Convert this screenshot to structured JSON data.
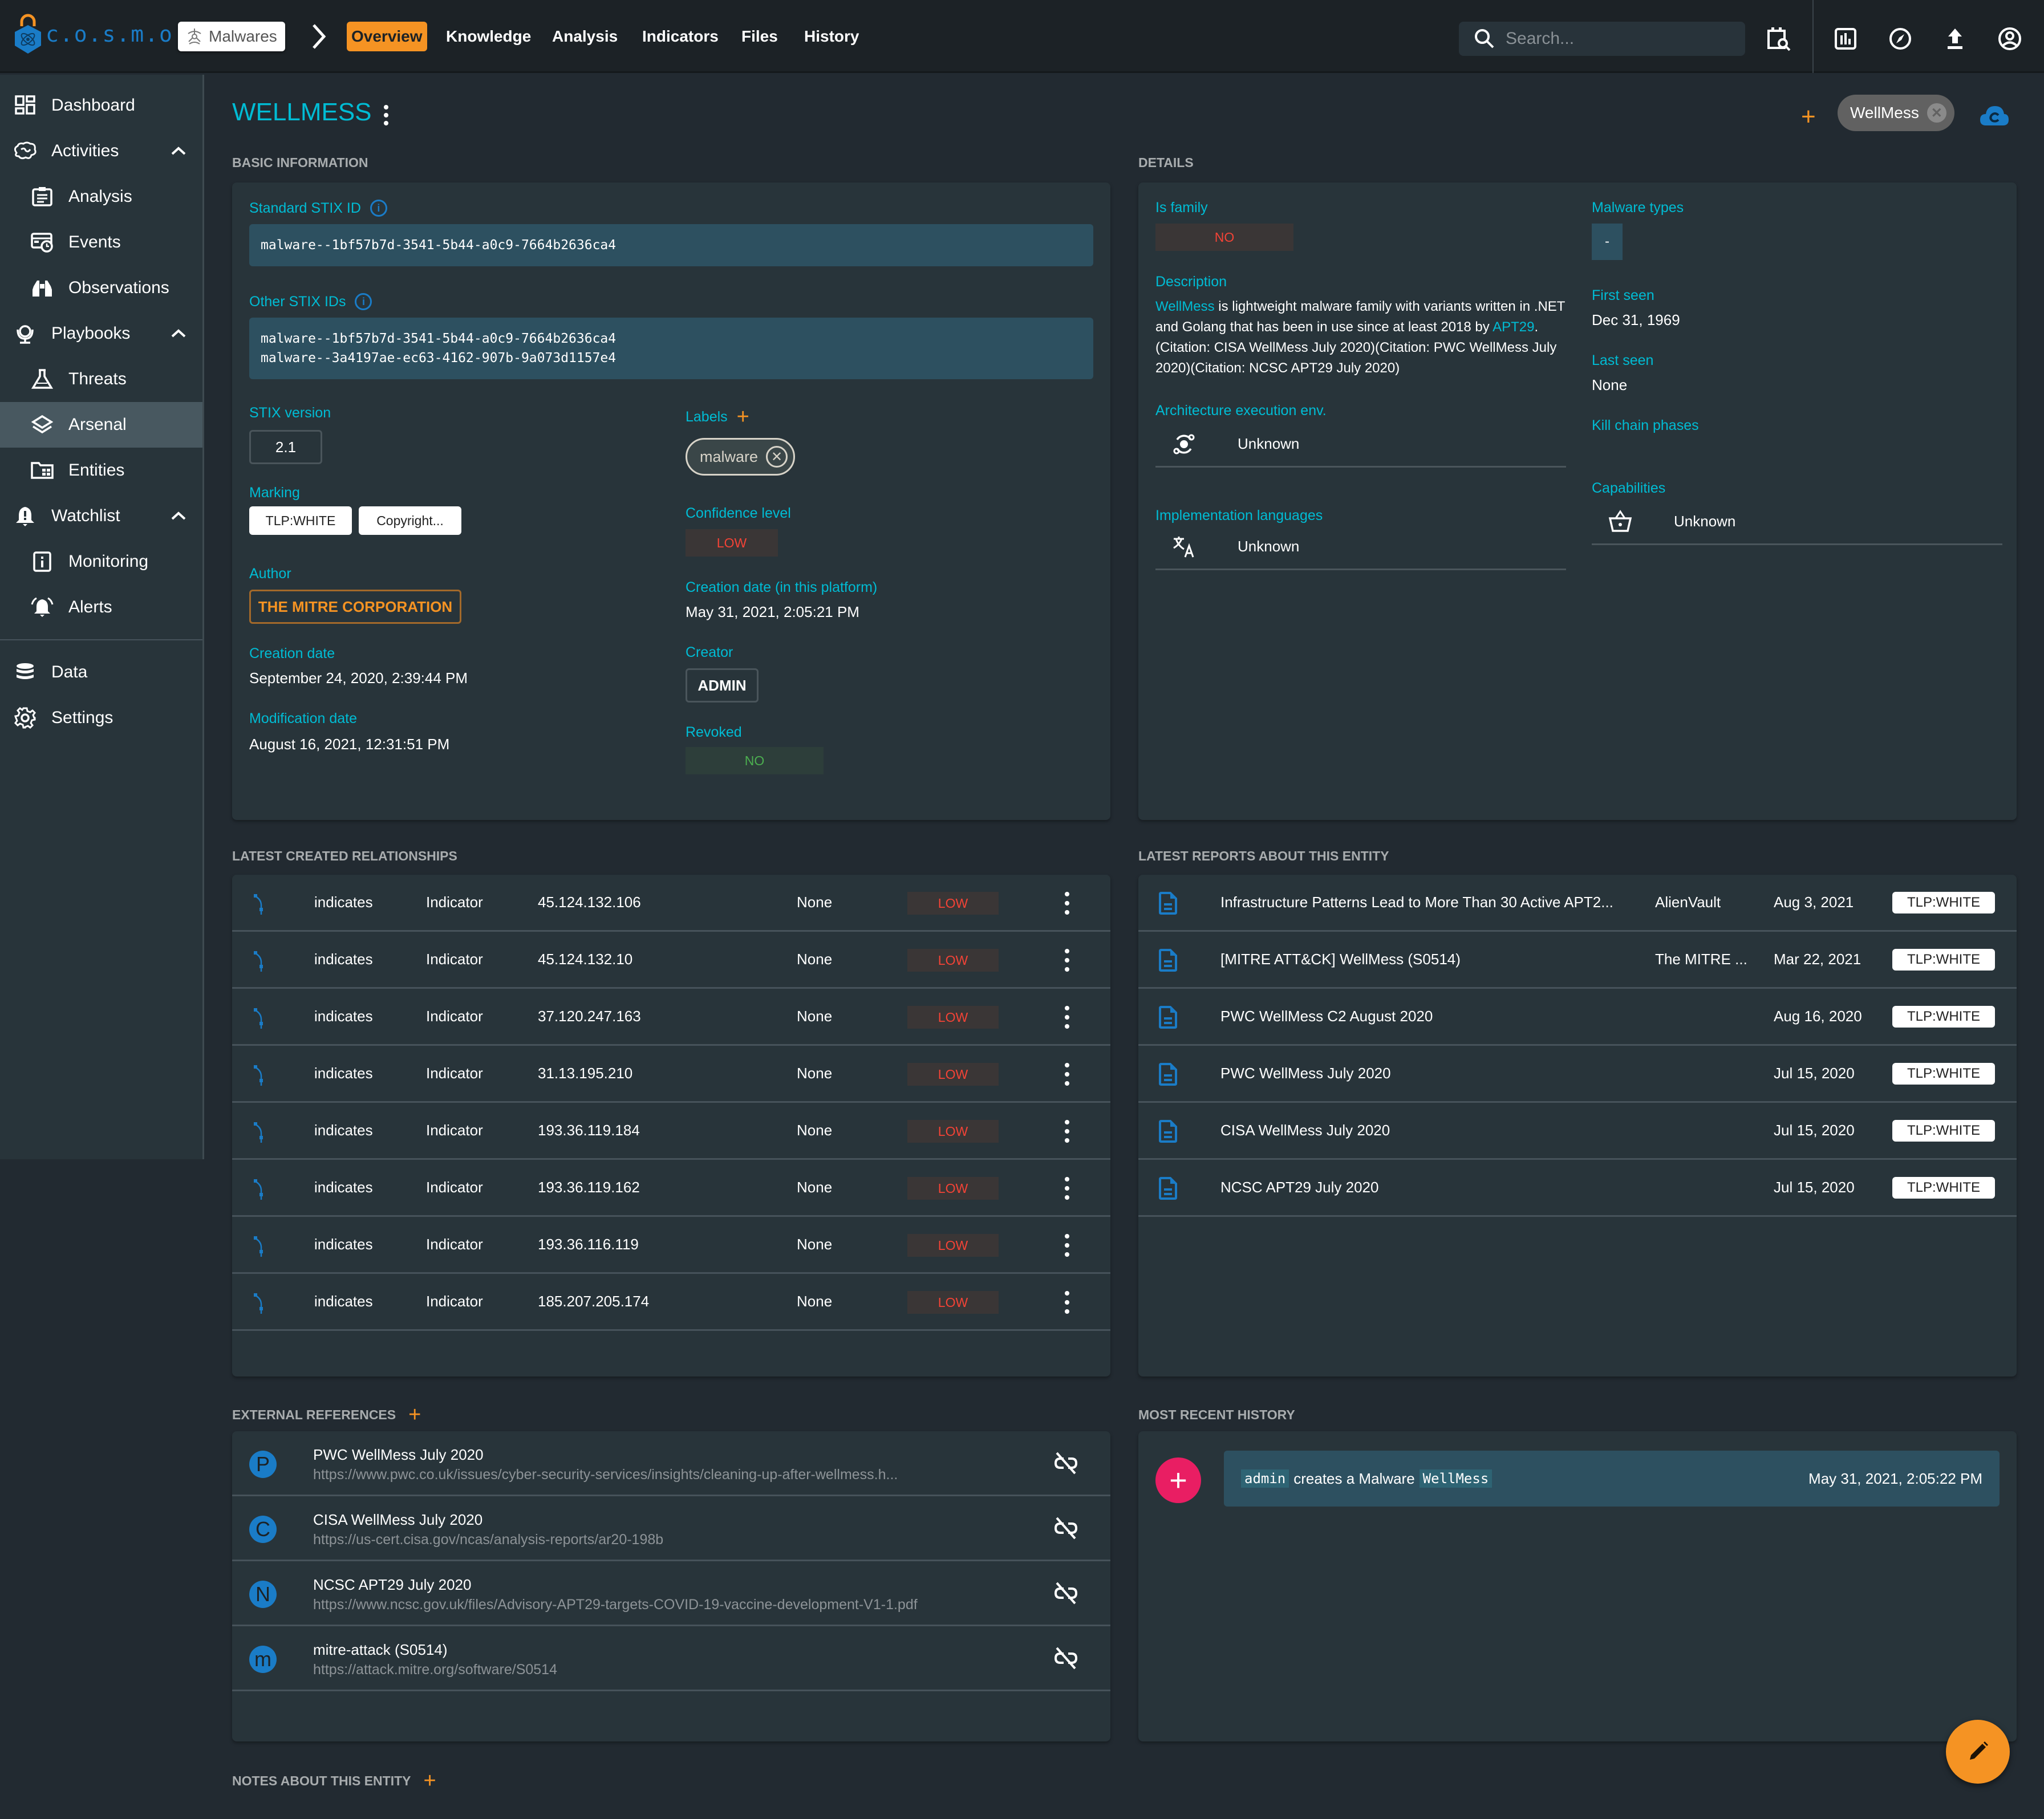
{
  "app": {
    "logo_text": "c.o.s.m.o"
  },
  "topbar": {
    "breadcrumb_root": "Malwares",
    "tabs": [
      {
        "label": "Overview",
        "active": true
      },
      {
        "label": "Knowledge",
        "active": false
      },
      {
        "label": "Analysis",
        "active": false
      },
      {
        "label": "Indicators",
        "active": false
      },
      {
        "label": "Files",
        "active": false
      },
      {
        "label": "History",
        "active": false
      }
    ],
    "search_placeholder": "Search..."
  },
  "sidebar": {
    "items": [
      {
        "label": "Dashboard",
        "icon": "dashboard-icon"
      },
      {
        "label": "Activities",
        "icon": "brain-icon",
        "expanded": true
      },
      {
        "label": "Analysis",
        "icon": "clipboard-icon"
      },
      {
        "label": "Events",
        "icon": "events-icon"
      },
      {
        "label": "Observations",
        "icon": "binoculars-icon"
      },
      {
        "label": "Playbooks",
        "icon": "globe-icon",
        "expanded": true
      },
      {
        "label": "Threats",
        "icon": "flask-icon"
      },
      {
        "label": "Arsenal",
        "icon": "layers-icon",
        "active": true
      },
      {
        "label": "Entities",
        "icon": "folder-table-icon"
      },
      {
        "label": "Watchlist",
        "icon": "bell-alert-icon",
        "expanded": true
      },
      {
        "label": "Monitoring",
        "icon": "info-box-icon"
      },
      {
        "label": "Alerts",
        "icon": "alarm-bell-icon"
      },
      {
        "label": "Data",
        "icon": "database-icon"
      },
      {
        "label": "Settings",
        "icon": "gear-icon"
      }
    ]
  },
  "entity": {
    "title": "WELLMESS",
    "alias": "WellMess"
  },
  "basic_info": {
    "section_title": "BASIC INFORMATION",
    "standard_stix_id_label": "Standard STIX ID",
    "standard_stix_id": "malware--1bf57b7d-3541-5b44-a0c9-7664b2636ca4",
    "other_stix_ids_label": "Other STIX IDs",
    "other_stix_ids": [
      "malware--1bf57b7d-3541-5b44-a0c9-7664b2636ca4",
      "malware--3a4197ae-ec63-4162-907b-9a073d1157e4"
    ],
    "stix_version_label": "STIX version",
    "stix_version": "2.1",
    "marking_label": "Marking",
    "markings": [
      "TLP:WHITE",
      "Copyright..."
    ],
    "author_label": "Author",
    "author": "THE MITRE CORPORATION",
    "creation_date_label": "Creation date",
    "creation_date": "September 24, 2020, 2:39:44 PM",
    "modification_date_label": "Modification date",
    "modification_date": "August 16, 2021, 12:31:51 PM",
    "labels_label": "Labels",
    "labels": [
      "malware"
    ],
    "confidence_label": "Confidence level",
    "confidence": "LOW",
    "platform_creation_label": "Creation date (in this platform)",
    "platform_creation": "May 31, 2021, 2:05:21 PM",
    "creator_label": "Creator",
    "creator": "ADMIN",
    "revoked_label": "Revoked",
    "revoked": "NO"
  },
  "details": {
    "section_title": "DETAILS",
    "is_family_label": "Is family",
    "is_family": "NO",
    "description_label": "Description",
    "description_link1": "WellMess",
    "description_part1": " is lightweight malware family with variants written in .NET and Golang that has been in use since at least 2018 by ",
    "description_link2": "APT29",
    "description_part2": ".(Citation: CISA WellMess July 2020)(Citation: PWC WellMess July 2020)(Citation: NCSC APT29 July 2020)",
    "architecture_label": "Architecture execution env.",
    "architecture": "Unknown",
    "impl_lang_label": "Implementation languages",
    "impl_lang": "Unknown",
    "malware_types_label": "Malware types",
    "malware_types": "-",
    "first_seen_label": "First seen",
    "first_seen": "Dec 31, 1969",
    "last_seen_label": "Last seen",
    "last_seen": "None",
    "kill_chain_label": "Kill chain phases",
    "capabilities_label": "Capabilities",
    "capabilities": "Unknown"
  },
  "relationships": {
    "section_title": "LATEST CREATED RELATIONSHIPS",
    "rows": [
      {
        "type": "indicates",
        "entity_type": "Indicator",
        "name": "45.124.132.106",
        "start": "None",
        "confidence": "LOW"
      },
      {
        "type": "indicates",
        "entity_type": "Indicator",
        "name": "45.124.132.10",
        "start": "None",
        "confidence": "LOW"
      },
      {
        "type": "indicates",
        "entity_type": "Indicator",
        "name": "37.120.247.163",
        "start": "None",
        "confidence": "LOW"
      },
      {
        "type": "indicates",
        "entity_type": "Indicator",
        "name": "31.13.195.210",
        "start": "None",
        "confidence": "LOW"
      },
      {
        "type": "indicates",
        "entity_type": "Indicator",
        "name": "193.36.119.184",
        "start": "None",
        "confidence": "LOW"
      },
      {
        "type": "indicates",
        "entity_type": "Indicator",
        "name": "193.36.119.162",
        "start": "None",
        "confidence": "LOW"
      },
      {
        "type": "indicates",
        "entity_type": "Indicator",
        "name": "193.36.116.119",
        "start": "None",
        "confidence": "LOW"
      },
      {
        "type": "indicates",
        "entity_type": "Indicator",
        "name": "185.207.205.174",
        "start": "None",
        "confidence": "LOW"
      }
    ]
  },
  "reports": {
    "section_title": "LATEST REPORTS ABOUT THIS ENTITY",
    "rows": [
      {
        "title": "Infrastructure Patterns Lead to More Than 30 Active APT2...",
        "author": "AlienVault",
        "date": "Aug 3, 2021",
        "marking": "TLP:WHITE"
      },
      {
        "title": "[MITRE ATT&CK] WellMess (S0514)",
        "author": "The MITRE ...",
        "date": "Mar 22, 2021",
        "marking": "TLP:WHITE"
      },
      {
        "title": "PWC WellMess C2 August 2020",
        "author": "",
        "date": "Aug 16, 2020",
        "marking": "TLP:WHITE"
      },
      {
        "title": "PWC WellMess July 2020",
        "author": "",
        "date": "Jul 15, 2020",
        "marking": "TLP:WHITE"
      },
      {
        "title": "CISA WellMess July 2020",
        "author": "",
        "date": "Jul 15, 2020",
        "marking": "TLP:WHITE"
      },
      {
        "title": "NCSC APT29 July 2020",
        "author": "",
        "date": "Jul 15, 2020",
        "marking": "TLP:WHITE"
      }
    ]
  },
  "external_refs": {
    "section_title": "EXTERNAL REFERENCES",
    "rows": [
      {
        "letter": "P",
        "title": "PWC WellMess July 2020",
        "url": "https://www.pwc.co.uk/issues/cyber-security-services/insights/cleaning-up-after-wellmess.h..."
      },
      {
        "letter": "C",
        "title": "CISA WellMess July 2020",
        "url": "https://us-cert.cisa.gov/ncas/analysis-reports/ar20-198b"
      },
      {
        "letter": "N",
        "title": "NCSC APT29 July 2020",
        "url": "https://www.ncsc.gov.uk/files/Advisory-APT29-targets-COVID-19-vaccine-development-V1-1.pdf"
      },
      {
        "letter": "m",
        "title": "mitre-attack (S0514)",
        "url": "https://attack.mitre.org/software/S0514"
      }
    ]
  },
  "history": {
    "section_title": "MOST RECENT HISTORY",
    "entries": [
      {
        "user": "admin",
        "action": "creates a Malware",
        "target": "WellMess",
        "date": "May 31, 2021, 2:05:22 PM"
      }
    ]
  },
  "notes": {
    "section_title": "NOTES ABOUT THIS ENTITY"
  },
  "colors": {
    "accent": "#00bcd4",
    "orange": "#f59323",
    "blue": "#1a7cc7",
    "danger": "#f44336",
    "success": "#4caf50",
    "pink": "#e91e63"
  }
}
